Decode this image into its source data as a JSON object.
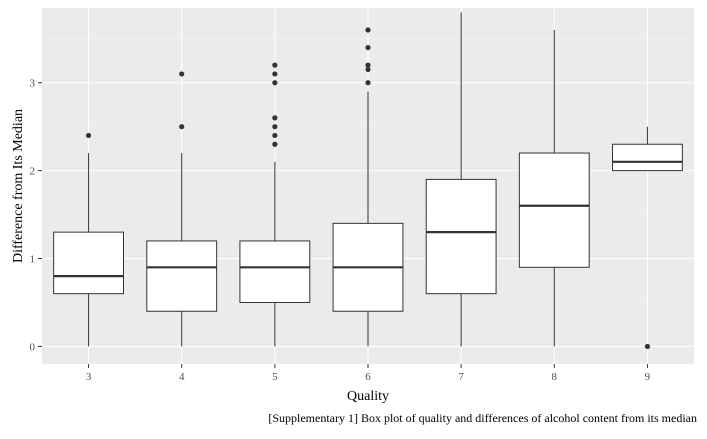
{
  "chart_data": {
    "type": "boxplot",
    "xlabel": "Quality",
    "ylabel": "Difference from Its Median",
    "ylim": [
      -0.2,
      3.85
    ],
    "yticks": [
      0,
      1,
      2,
      3
    ],
    "grid": true,
    "categories": [
      "3",
      "4",
      "5",
      "6",
      "7",
      "8",
      "9"
    ],
    "boxes": [
      {
        "category": "3",
        "whisker_low": 0.0,
        "q1": 0.6,
        "median": 0.8,
        "q3": 1.3,
        "whisker_high": 2.2,
        "outliers": [
          2.4
        ]
      },
      {
        "category": "4",
        "whisker_low": 0.0,
        "q1": 0.4,
        "median": 0.9,
        "q3": 1.2,
        "whisker_high": 2.2,
        "outliers": [
          2.5,
          3.1
        ]
      },
      {
        "category": "5",
        "whisker_low": 0.0,
        "q1": 0.5,
        "median": 0.9,
        "q3": 1.2,
        "whisker_high": 2.1,
        "outliers": [
          2.3,
          2.4,
          2.5,
          2.6,
          3.0,
          3.1,
          3.2
        ]
      },
      {
        "category": "6",
        "whisker_low": 0.0,
        "q1": 0.4,
        "median": 0.9,
        "q3": 1.4,
        "whisker_high": 2.9,
        "outliers": [
          3.0,
          3.15,
          3.2,
          3.4,
          3.6
        ]
      },
      {
        "category": "7",
        "whisker_low": 0.0,
        "q1": 0.6,
        "median": 1.3,
        "q3": 1.9,
        "whisker_high": 3.8,
        "outliers": []
      },
      {
        "category": "8",
        "whisker_low": 0.0,
        "q1": 0.9,
        "median": 1.6,
        "q3": 2.2,
        "whisker_high": 3.6,
        "outliers": []
      },
      {
        "category": "9",
        "whisker_low": 2.0,
        "q1": 2.0,
        "median": 2.1,
        "q3": 2.3,
        "whisker_high": 2.5,
        "outliers": [
          0.0
        ]
      }
    ],
    "colors": {
      "panel": "#ebebeb",
      "grid_major": "#ffffff",
      "grid_minor": "#f4f4f4",
      "box_fill": "#ffffff",
      "box_stroke": "#333333",
      "outlier": "#333333",
      "tick_text": "#4d4d4d",
      "axis_title": "#000000"
    }
  },
  "caption": "[Supplementary 1] Box plot of quality and differences of alcohol content from its median"
}
